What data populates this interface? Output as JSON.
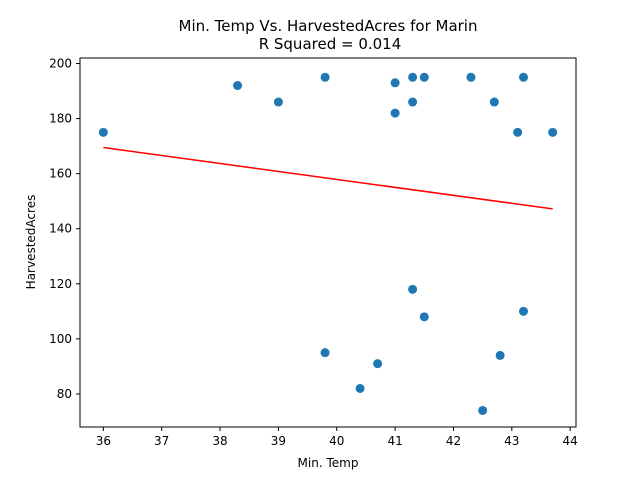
{
  "chart_data": {
    "type": "scatter",
    "title": "Min. Temp Vs. HarvestedAcres for Marin",
    "subtitle": "R Squared =  0.014",
    "xlabel": "Min. Temp",
    "ylabel": "HarvestedAcres",
    "xlim": [
      35.6,
      44.1
    ],
    "ylim": [
      68,
      202
    ],
    "xticks": [
      36,
      37,
      38,
      39,
      40,
      41,
      42,
      43,
      44
    ],
    "yticks": [
      80,
      100,
      120,
      140,
      160,
      180,
      200
    ],
    "grid": false,
    "points": [
      {
        "x": 36.0,
        "y": 175
      },
      {
        "x": 38.3,
        "y": 192
      },
      {
        "x": 39.0,
        "y": 186
      },
      {
        "x": 39.8,
        "y": 195
      },
      {
        "x": 39.8,
        "y": 95
      },
      {
        "x": 40.4,
        "y": 82
      },
      {
        "x": 40.7,
        "y": 91
      },
      {
        "x": 41.0,
        "y": 193
      },
      {
        "x": 41.0,
        "y": 182
      },
      {
        "x": 41.3,
        "y": 195
      },
      {
        "x": 41.3,
        "y": 186
      },
      {
        "x": 41.3,
        "y": 118
      },
      {
        "x": 41.5,
        "y": 195
      },
      {
        "x": 41.5,
        "y": 108
      },
      {
        "x": 42.3,
        "y": 195
      },
      {
        "x": 42.5,
        "y": 74
      },
      {
        "x": 42.7,
        "y": 186
      },
      {
        "x": 42.8,
        "y": 94
      },
      {
        "x": 43.1,
        "y": 175
      },
      {
        "x": 43.2,
        "y": 195
      },
      {
        "x": 43.2,
        "y": 110
      },
      {
        "x": 43.7,
        "y": 175
      }
    ],
    "trendline": {
      "x": [
        36.0,
        43.7
      ],
      "y": [
        169.5,
        147.2
      ]
    },
    "colors": {
      "points": "#1f77b4",
      "trendline": "#ff0000"
    }
  }
}
